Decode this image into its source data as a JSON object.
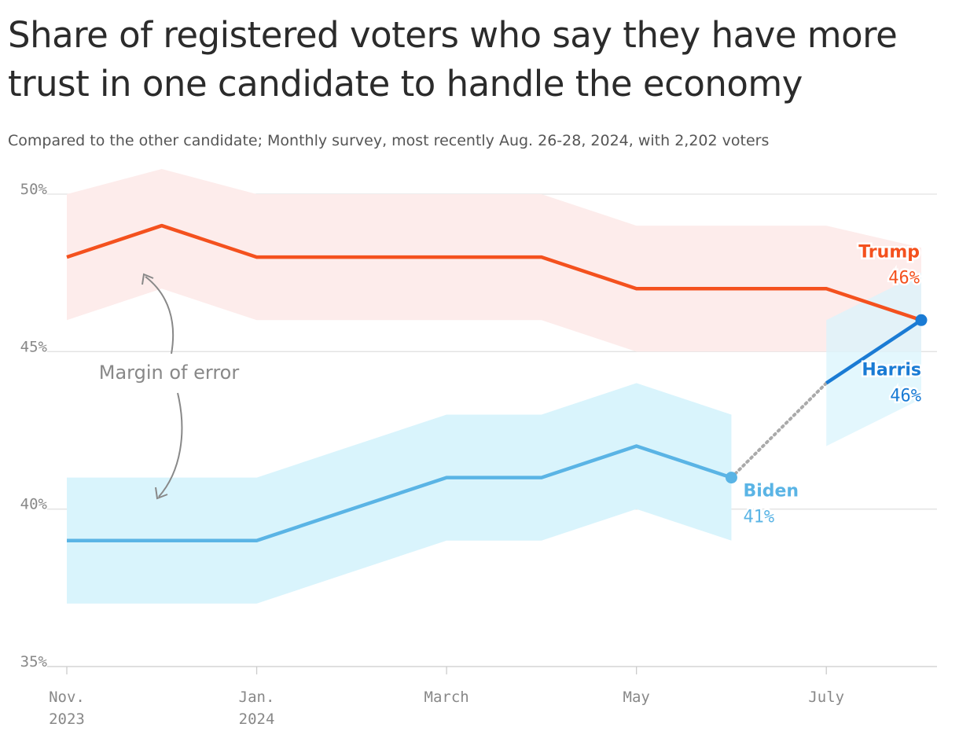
{
  "chart_data": {
    "type": "line",
    "title": "Share of registered voters who say they have more trust in one candidate to handle the economy",
    "subtitle": "Compared to the other candidate; Monthly survey, most recently Aug. 26-28, 2024, with 2,202 voters",
    "annotation": "Margin of error",
    "categories": [
      "Nov. 2023",
      null,
      "Jan. 2024",
      null,
      "March",
      null,
      "May",
      null,
      "July",
      null
    ],
    "ylim": [
      35,
      50
    ],
    "yticks": [
      {
        "value": 35,
        "label": "35%"
      },
      {
        "value": 40,
        "label": "40%"
      },
      {
        "value": 45,
        "label": "45%"
      },
      {
        "value": 50,
        "label": "50%"
      }
    ],
    "grid": true,
    "series": [
      {
        "name": "Trump",
        "color": "#f4511e",
        "band_color": "#fdeceb",
        "values": [
          48,
          49,
          48,
          48,
          48,
          48,
          47,
          47,
          47,
          46
        ],
        "value_labels": [
          null,
          null,
          null,
          null,
          null,
          null,
          null,
          null,
          null,
          "46%"
        ],
        "band_low": [
          46,
          47,
          46,
          46,
          46,
          46,
          45,
          45,
          45,
          45
        ],
        "band_high": [
          50,
          50.8,
          50,
          50,
          50,
          50,
          49,
          49,
          49,
          48.3
        ]
      },
      {
        "name": "Biden",
        "color": "#5ab4e5",
        "band_color": "#d9f4fc",
        "values": [
          39,
          39,
          39,
          40,
          41,
          41,
          42,
          41,
          null,
          null
        ],
        "value_labels": [
          null,
          null,
          null,
          null,
          null,
          null,
          null,
          "41%",
          null,
          null
        ],
        "band_low": [
          37,
          37,
          37,
          38,
          39,
          39,
          40,
          39,
          null,
          null
        ],
        "band_high": [
          41,
          41,
          41,
          42,
          43,
          43,
          44,
          43,
          null,
          null
        ]
      },
      {
        "name": "Harris",
        "color": "#1a7bd4",
        "band_color": "#d9f4fc",
        "values": [
          null,
          null,
          null,
          null,
          null,
          null,
          null,
          null,
          44,
          46
        ],
        "value_labels": [
          null,
          null,
          null,
          null,
          null,
          null,
          null,
          null,
          null,
          "46%"
        ],
        "band_low": [
          null,
          null,
          null,
          null,
          null,
          null,
          null,
          null,
          42,
          43.5
        ],
        "band_high": [
          null,
          null,
          null,
          null,
          null,
          null,
          null,
          null,
          46,
          47.5
        ]
      }
    ]
  }
}
